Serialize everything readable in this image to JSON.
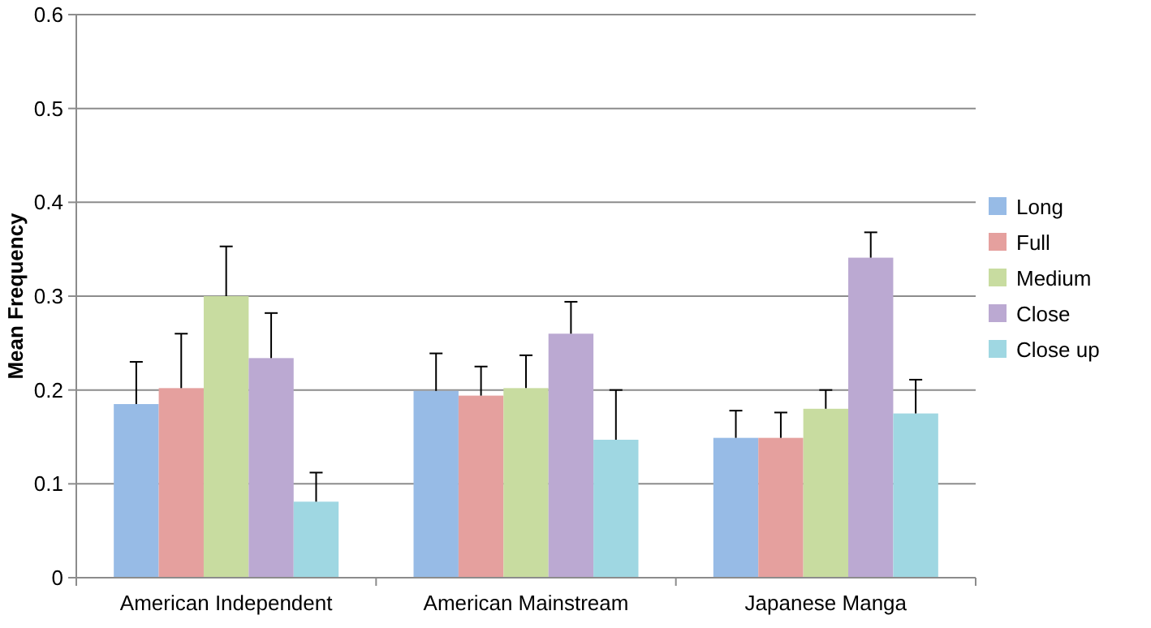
{
  "chart_data": {
    "type": "bar",
    "ylabel": "Mean Frequency",
    "categories": [
      "American Independent",
      "American Mainstream",
      "Japanese Manga"
    ],
    "series": [
      {
        "name": "Long",
        "color": "#97bbe6",
        "values": [
          0.185,
          0.199,
          0.149
        ],
        "errors": [
          0.045,
          0.04,
          0.029
        ]
      },
      {
        "name": "Full",
        "color": "#e5a09e",
        "values": [
          0.202,
          0.194,
          0.149
        ],
        "errors": [
          0.058,
          0.031,
          0.027
        ]
      },
      {
        "name": "Medium",
        "color": "#c8dca0",
        "values": [
          0.3,
          0.202,
          0.18
        ],
        "errors": [
          0.053,
          0.035,
          0.02
        ]
      },
      {
        "name": "Close",
        "color": "#bba9d2",
        "values": [
          0.234,
          0.26,
          0.341
        ],
        "errors": [
          0.048,
          0.034,
          0.027
        ]
      },
      {
        "name": "Close up",
        "color": "#9fd7e2",
        "values": [
          0.081,
          0.147,
          0.175
        ],
        "errors": [
          0.031,
          0.053,
          0.036
        ]
      }
    ],
    "ylim": [
      0,
      0.6
    ],
    "yticks": [
      0,
      0.1,
      0.2,
      0.3,
      0.4,
      0.5,
      0.6
    ],
    "grid": "y",
    "legend": "right"
  }
}
